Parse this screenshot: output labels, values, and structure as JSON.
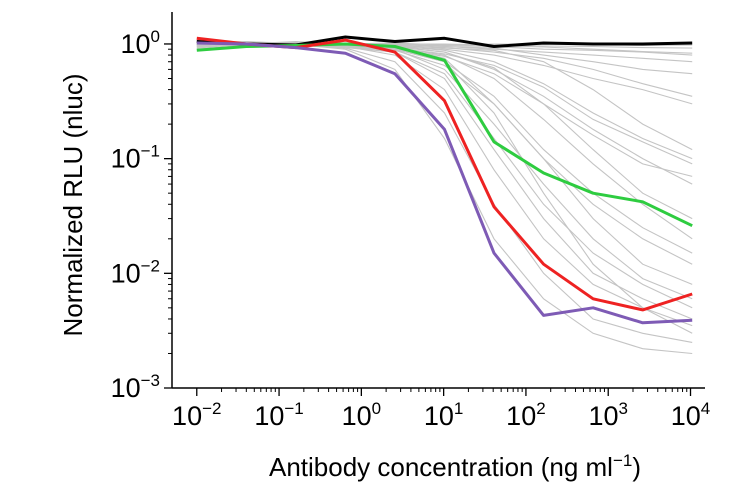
{
  "chart_data": {
    "type": "line",
    "xscale": "log",
    "yscale": "log",
    "xlabel": {
      "text": "Antibody concentration (ng ml",
      "sup": "−1",
      "suffix": ")"
    },
    "ylabel": "Normalized RLU (nluc)",
    "xlim": [
      0.005,
      15000
    ],
    "ylim": [
      0.001,
      1.9
    ],
    "grid": false,
    "x": [
      0.01,
      0.04,
      0.16,
      0.64,
      2.56,
      10.24,
      40.96,
      163.84,
      655.36,
      2621.44,
      10485.76
    ],
    "x_ticks": [
      {
        "base": "10",
        "exp": "−2"
      },
      {
        "base": "10",
        "exp": "−1"
      },
      {
        "base": "10",
        "exp": "0"
      },
      {
        "base": "10",
        "exp": "1"
      },
      {
        "base": "10",
        "exp": "2"
      },
      {
        "base": "10",
        "exp": "3"
      },
      {
        "base": "10",
        "exp": "4"
      }
    ],
    "y_ticks": [
      {
        "base": "10",
        "exp": "0"
      },
      {
        "base": "10",
        "exp": "−1"
      },
      {
        "base": "10",
        "exp": "−2"
      },
      {
        "base": "10",
        "exp": "−3"
      }
    ],
    "highlight_series": [
      {
        "color": "#000000",
        "values": [
          1.05,
          1.0,
          0.98,
          1.15,
          1.05,
          1.12,
          0.95,
          1.02,
          1.0,
          1.0,
          1.02
        ]
      },
      {
        "color": "#2ecc40",
        "values": [
          0.88,
          0.95,
          0.97,
          1.0,
          0.95,
          0.72,
          0.14,
          0.075,
          0.05,
          0.042,
          0.026
        ]
      },
      {
        "color": "#ee2222",
        "values": [
          1.12,
          1.0,
          0.93,
          1.08,
          0.85,
          0.32,
          0.038,
          0.012,
          0.006,
          0.0048,
          0.0066
        ]
      },
      {
        "color": "#7e5bb5",
        "values": [
          1.02,
          1.0,
          0.93,
          0.83,
          0.55,
          0.18,
          0.015,
          0.0043,
          0.005,
          0.0037,
          0.0039
        ]
      }
    ],
    "background_series": [
      [
        1.1,
        1.0,
        1.05,
        1.0,
        1.02,
        0.98,
        1.0,
        0.99,
        1.0,
        0.97,
        0.98
      ],
      [
        0.95,
        1.05,
        1.0,
        0.98,
        1.0,
        0.95,
        0.9,
        0.85,
        0.8,
        0.75,
        0.7
      ],
      [
        1.0,
        0.98,
        1.02,
        1.0,
        0.95,
        0.9,
        0.8,
        0.65,
        0.5,
        0.4,
        0.3
      ],
      [
        1.05,
        1.0,
        0.97,
        0.99,
        0.95,
        0.85,
        0.6,
        0.35,
        0.18,
        0.1,
        0.06
      ],
      [
        1.0,
        1.02,
        1.0,
        0.96,
        0.9,
        0.7,
        0.35,
        0.12,
        0.05,
        0.025,
        0.015
      ],
      [
        0.98,
        1.0,
        1.03,
        0.95,
        0.85,
        0.5,
        0.12,
        0.03,
        0.01,
        0.006,
        0.004
      ],
      [
        1.08,
        0.97,
        1.0,
        0.92,
        0.7,
        0.25,
        0.04,
        0.01,
        0.004,
        0.003,
        0.0025
      ],
      [
        1.0,
        1.0,
        0.98,
        1.0,
        0.98,
        0.97,
        0.95,
        0.9,
        0.88,
        0.85,
        0.8
      ],
      [
        0.92,
        1.0,
        1.0,
        1.02,
        0.97,
        0.93,
        0.85,
        0.75,
        0.6,
        0.45,
        0.35
      ],
      [
        1.03,
        1.05,
        0.98,
        0.97,
        0.92,
        0.8,
        0.5,
        0.22,
        0.09,
        0.04,
        0.02
      ],
      [
        1.0,
        0.96,
        1.0,
        0.98,
        0.9,
        0.6,
        0.2,
        0.06,
        0.02,
        0.009,
        0.006
      ],
      [
        1.1,
        1.02,
        0.99,
        0.9,
        0.6,
        0.15,
        0.02,
        0.006,
        0.003,
        0.0022,
        0.002
      ],
      [
        0.97,
        1.0,
        1.01,
        1.0,
        0.99,
        0.95,
        0.92,
        0.8,
        0.7,
        0.6,
        0.55
      ],
      [
        1.0,
        1.03,
        1.0,
        0.99,
        0.96,
        0.88,
        0.7,
        0.45,
        0.25,
        0.15,
        0.1
      ],
      [
        1.05,
        0.99,
        0.97,
        0.95,
        0.88,
        0.65,
        0.3,
        0.1,
        0.04,
        0.02,
        0.012
      ],
      [
        0.9,
        0.98,
        1.0,
        0.97,
        0.93,
        0.75,
        0.3,
        0.1,
        0.03,
        0.012,
        0.008
      ],
      [
        1.0,
        1.01,
        1.02,
        1.0,
        1.0,
        1.0,
        0.98,
        0.96,
        0.95,
        0.93,
        0.92
      ],
      [
        1.02,
        1.0,
        0.98,
        0.96,
        0.9,
        0.78,
        0.55,
        0.3,
        0.16,
        0.09,
        0.07
      ],
      [
        0.96,
        1.0,
        1.0,
        0.95,
        0.8,
        0.4,
        0.08,
        0.02,
        0.008,
        0.005,
        0.0035
      ],
      [
        1.0,
        0.99,
        1.0,
        1.0,
        0.97,
        0.92,
        0.88,
        0.7,
        0.4,
        0.2,
        0.12
      ],
      [
        1.06,
        1.02,
        1.0,
        0.98,
        0.94,
        0.85,
        0.62,
        0.3,
        0.12,
        0.05,
        0.03
      ],
      [
        0.99,
        1.0,
        0.97,
        0.93,
        0.85,
        0.55,
        0.15,
        0.04,
        0.015,
        0.008,
        0.005
      ],
      [
        1.0,
        1.04,
        1.02,
        1.01,
        1.0,
        0.99,
        0.97,
        0.94,
        0.9,
        0.86,
        0.83
      ],
      [
        1.04,
        1.0,
        0.99,
        0.97,
        0.92,
        0.82,
        0.65,
        0.42,
        0.22,
        0.14,
        0.09
      ],
      [
        0.94,
        0.99,
        1.0,
        0.96,
        0.9,
        0.7,
        0.25,
        0.05,
        0.012,
        0.005,
        0.003
      ]
    ]
  }
}
